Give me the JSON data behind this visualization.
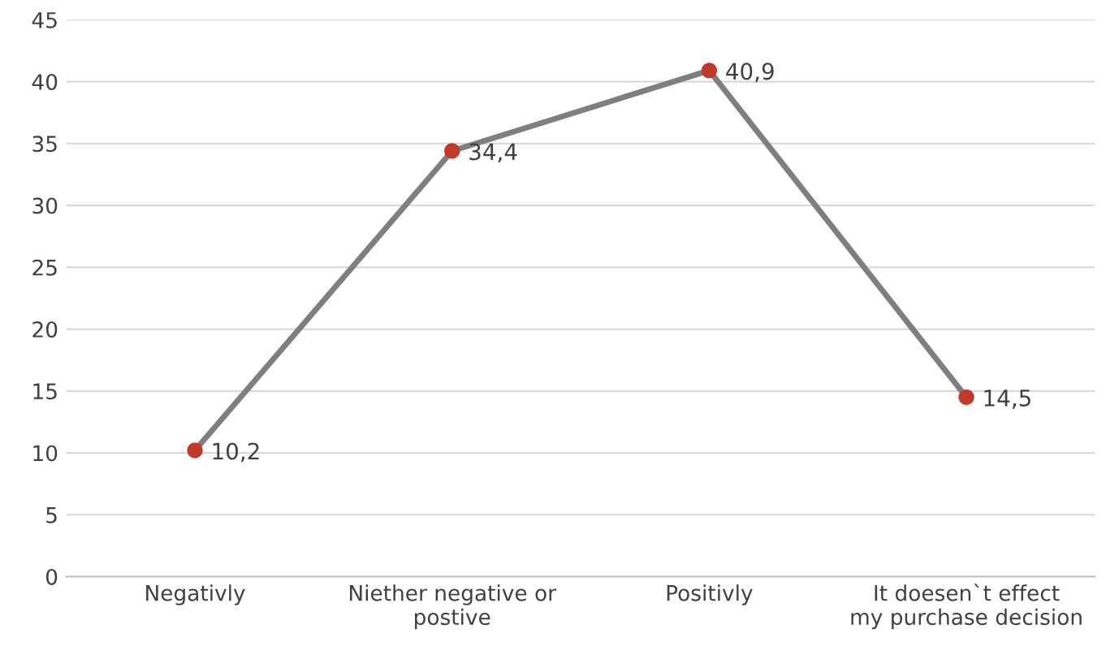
{
  "chart_data": {
    "type": "line",
    "categories": [
      "Negativly",
      "Niether negative or postive",
      "Positivly",
      "It doesen`t effect my purchase decision"
    ],
    "series": [
      {
        "color": "#7f7f7f",
        "values": [
          10.2,
          34.4,
          40.9,
          14.5
        ],
        "value_labels": [
          "10,2",
          "34,4",
          "40,9",
          "14,5"
        ]
      }
    ],
    "colors": [
      "#c0392b",
      "#c0392b",
      "#c0392b",
      "#c0392b"
    ],
    "ylim": [
      0,
      45
    ],
    "yticks": [
      0,
      5,
      10,
      15,
      20,
      25,
      30,
      35,
      40,
      45
    ],
    "grid": "y",
    "marker": "circle",
    "line_style": "solid",
    "legend": false
  }
}
